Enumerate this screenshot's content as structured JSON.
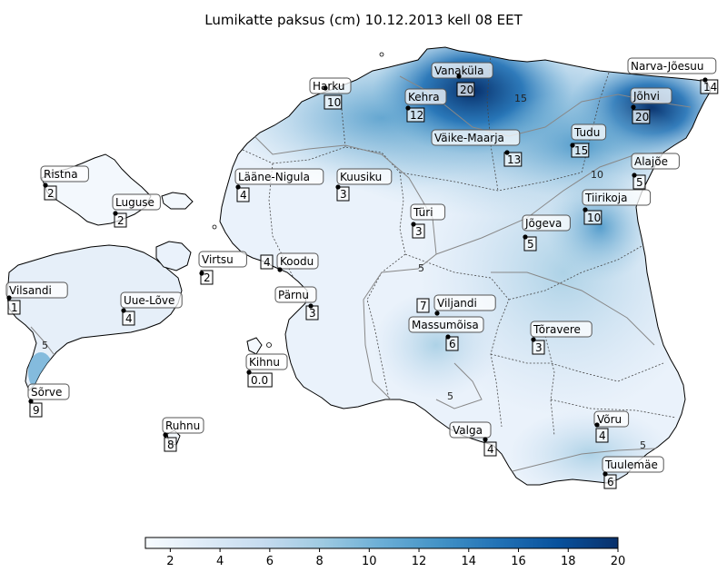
{
  "title": "Lumikatte paksus (cm) 10.12.2013 kell 08 EET",
  "colorbar": {
    "min": 1,
    "max": 20,
    "ticks": [
      "2",
      "4",
      "6",
      "8",
      "10",
      "12",
      "14",
      "16",
      "18",
      "20"
    ],
    "colors": [
      "#f7fbff",
      "#deebf7",
      "#c6dbef",
      "#9ecae1",
      "#6baed6",
      "#4292c6",
      "#2171b5",
      "#08519c",
      "#08306b"
    ]
  },
  "contour_labels": [
    "5",
    "5",
    "5",
    "5",
    "10",
    "15"
  ],
  "stations": [
    {
      "id": "harku",
      "name": "Harku",
      "value": "10"
    },
    {
      "id": "vanakula",
      "name": "Vanaküla",
      "value": "20"
    },
    {
      "id": "narva-joesuu",
      "name": "Narva-Jõesuu",
      "value": "14"
    },
    {
      "id": "kehra",
      "name": "Kehra",
      "value": "12"
    },
    {
      "id": "johvi",
      "name": "Jõhvi",
      "value": "20"
    },
    {
      "id": "vaike-maarja",
      "name": "Väike-Maarja",
      "value": "13"
    },
    {
      "id": "tudu",
      "name": "Tudu",
      "value": "15"
    },
    {
      "id": "ristna",
      "name": "Ristna",
      "value": "2"
    },
    {
      "id": "laane-nigula",
      "name": "Lääne-Nigula",
      "value": "4"
    },
    {
      "id": "kuusiku",
      "name": "Kuusiku",
      "value": "3"
    },
    {
      "id": "alajoe",
      "name": "Alajõe",
      "value": "5"
    },
    {
      "id": "luguse",
      "name": "Luguse",
      "value": "2"
    },
    {
      "id": "tiirikoja",
      "name": "Tiirikoja",
      "value": "10"
    },
    {
      "id": "turi",
      "name": "Türi",
      "value": "3"
    },
    {
      "id": "jogeva",
      "name": "Jõgeva",
      "value": "5"
    },
    {
      "id": "virtsu",
      "name": "Virtsu",
      "value": "2"
    },
    {
      "id": "koodu",
      "name": "Koodu",
      "value": "4"
    },
    {
      "id": "vilsandi",
      "name": "Vilsandi",
      "value": "1"
    },
    {
      "id": "uue-love",
      "name": "Uue-Lõve",
      "value": "4"
    },
    {
      "id": "parnu",
      "name": "Pärnu",
      "value": "3"
    },
    {
      "id": "viljandi",
      "name": "Viljandi",
      "value": "7"
    },
    {
      "id": "massumoisa",
      "name": "Massumõisa",
      "value": "6"
    },
    {
      "id": "toravere",
      "name": "Tõravere",
      "value": "3"
    },
    {
      "id": "kihnu",
      "name": "Kihnu",
      "value": "0.0"
    },
    {
      "id": "sorve",
      "name": "Sõrve",
      "value": "9"
    },
    {
      "id": "ruhnu",
      "name": "Ruhnu",
      "value": "8"
    },
    {
      "id": "valga",
      "name": "Valga",
      "value": "4"
    },
    {
      "id": "voru",
      "name": "Võru",
      "value": "4"
    },
    {
      "id": "tuulemae",
      "name": "Tuulemäe",
      "value": "6"
    }
  ]
}
